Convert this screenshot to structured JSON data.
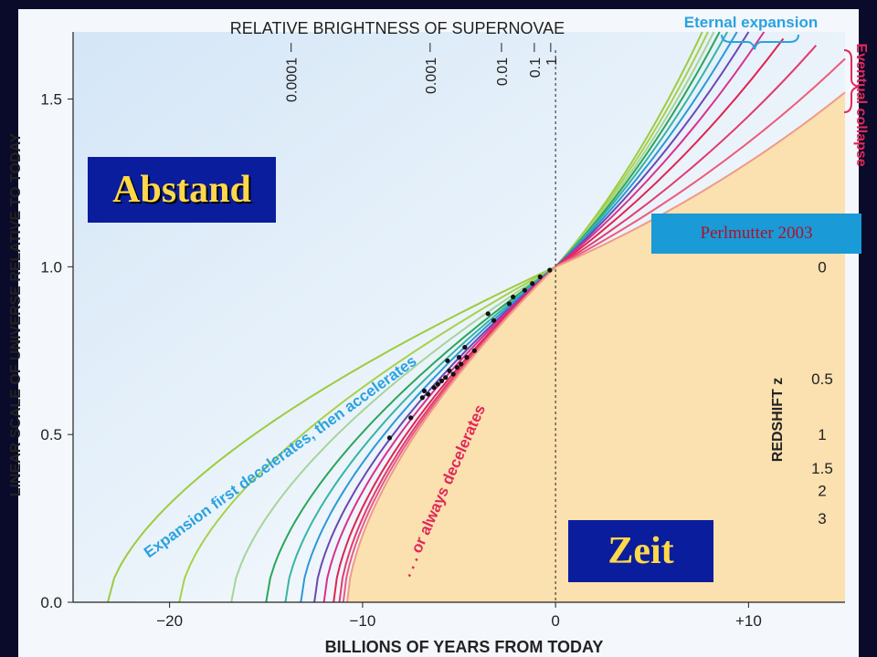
{
  "chart_data": {
    "type": "line",
    "title": "RELATIVE BRIGHTNESS OF SUPERNOVAE",
    "xlabel": "BILLIONS OF YEARS FROM TODAY",
    "ylabel": "LINEAR SCALE OF UNIVERSE RELATIVE TO TODAY",
    "right_axis_label": "REDSHIFT z",
    "xlim": [
      -25,
      15
    ],
    "ylim": [
      0,
      1.7
    ],
    "x_ticks": [
      {
        "value": -20,
        "label": "−20"
      },
      {
        "value": -10,
        "label": "−10"
      },
      {
        "value": 0,
        "label": "0"
      },
      {
        "value": 10,
        "label": "+10"
      }
    ],
    "y_ticks": [
      {
        "value": 0.0,
        "label": "0.0"
      },
      {
        "value": 0.5,
        "label": "0.5"
      },
      {
        "value": 1.0,
        "label": "1.0"
      },
      {
        "value": 1.5,
        "label": "1.5"
      }
    ],
    "redshift_ticks": [
      {
        "label": "0",
        "scale": 1.0
      },
      {
        "label": "0.5",
        "scale": 0.667
      },
      {
        "label": "1",
        "scale": 0.5
      },
      {
        "label": "1.5",
        "scale": 0.4
      },
      {
        "label": "2",
        "scale": 0.333
      },
      {
        "label": "3",
        "scale": 0.25
      }
    ],
    "brightness_ticks": [
      {
        "label": "0.0001",
        "x": -13.7
      },
      {
        "label": "0.001",
        "x": -6.5
      },
      {
        "label": "0.01",
        "x": -2.8
      },
      {
        "label": "0.1",
        "x": -1.1
      },
      {
        "label": "1",
        "x": -0.25
      }
    ],
    "annotations": {
      "eternal": "Eternal expansion",
      "collapse": "Eventual collapse",
      "first_decel": "Expansion first decelerates, then accelerates",
      "always_decel": ". . . or always decelerates"
    },
    "series": [
      {
        "color": "#9ccc3c",
        "start": -23.2,
        "end": [
          7.6,
          1.7
        ]
      },
      {
        "color": "#a6d24a",
        "start": -19.5,
        "end": [
          7.9,
          1.7
        ]
      },
      {
        "color": "#a7d49a",
        "start": -16.8,
        "end": [
          8.2,
          1.7
        ]
      },
      {
        "color": "#2aa65a",
        "start": -15.0,
        "end": [
          8.5,
          1.7
        ]
      },
      {
        "color": "#38b4a4",
        "start": -14.0,
        "end": [
          8.9,
          1.7
        ]
      },
      {
        "color": "#2c98d8",
        "start": -13.2,
        "end": [
          9.4,
          1.7
        ]
      },
      {
        "color": "#6a48b2",
        "start": -12.5,
        "end": [
          10.0,
          1.7
        ]
      },
      {
        "color": "#d8308a",
        "start": -12.0,
        "end": [
          10.8,
          1.7
        ]
      },
      {
        "color": "#e02450",
        "start": -11.5,
        "end": [
          11.8,
          1.68
        ]
      },
      {
        "color": "#e03c70",
        "start": -11.2,
        "end": [
          13.5,
          1.66
        ]
      },
      {
        "color": "#ee5a7a",
        "start": -11.0,
        "end": [
          15.0,
          1.62
        ]
      },
      {
        "color": "#f09a88",
        "start": -10.8,
        "end": [
          15.0,
          1.52
        ]
      }
    ],
    "data_points": [
      {
        "x": -0.3,
        "y": 0.99
      },
      {
        "x": -0.8,
        "y": 0.97
      },
      {
        "x": -1.2,
        "y": 0.95
      },
      {
        "x": -1.6,
        "y": 0.93
      },
      {
        "x": -2.2,
        "y": 0.91
      },
      {
        "x": -3.5,
        "y": 0.86
      },
      {
        "x": -2.4,
        "y": 0.89
      },
      {
        "x": -3.2,
        "y": 0.84
      },
      {
        "x": -4.2,
        "y": 0.75
      },
      {
        "x": -4.6,
        "y": 0.73
      },
      {
        "x": -4.9,
        "y": 0.71
      },
      {
        "x": -5.1,
        "y": 0.7
      },
      {
        "x": -5.3,
        "y": 0.68
      },
      {
        "x": -5.5,
        "y": 0.69
      },
      {
        "x": -5.7,
        "y": 0.67
      },
      {
        "x": -5.9,
        "y": 0.66
      },
      {
        "x": -6.1,
        "y": 0.65
      },
      {
        "x": -6.3,
        "y": 0.64
      },
      {
        "x": -6.6,
        "y": 0.62
      },
      {
        "x": -6.9,
        "y": 0.61
      },
      {
        "x": -5.0,
        "y": 0.73
      },
      {
        "x": -4.7,
        "y": 0.76
      },
      {
        "x": -5.6,
        "y": 0.72
      },
      {
        "x": -6.8,
        "y": 0.63
      },
      {
        "x": -7.5,
        "y": 0.55
      },
      {
        "x": -8.6,
        "y": 0.49
      }
    ],
    "grid": false,
    "legend": "none"
  },
  "overlays": {
    "abstand": "Abstand",
    "zeit": "Zeit",
    "perlmutter": "Perlmutter 2003"
  },
  "colors": {
    "background": "#0a0a2a",
    "plot_past": "#e6f0fa",
    "plot_future": "#fbe0b0",
    "label_box": "#0a1d9c",
    "label_text": "#ffd84a"
  }
}
